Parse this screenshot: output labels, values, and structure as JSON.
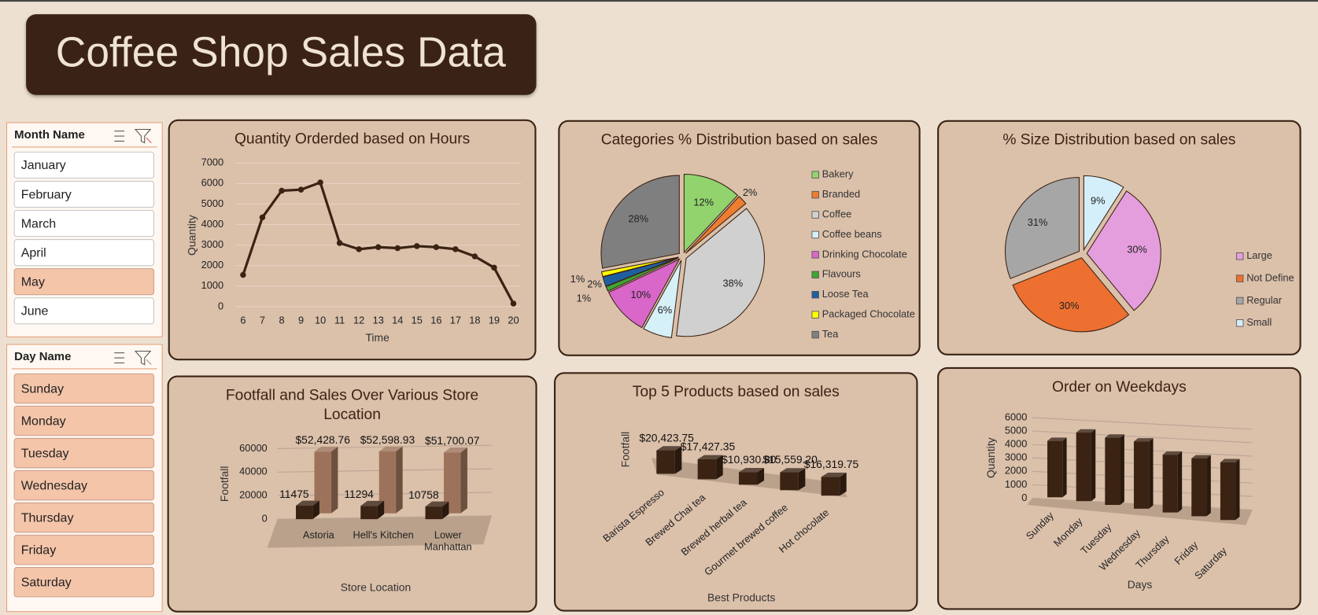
{
  "header": {
    "title": "Coffee Shop Sales Data"
  },
  "slicers": [
    {
      "title": "Month Name",
      "items": [
        "January",
        "February",
        "March",
        "April",
        "May",
        "June"
      ],
      "selected": [
        false,
        false,
        false,
        false,
        true,
        false
      ]
    },
    {
      "title": "Day Name",
      "items": [
        "Sunday",
        "Monday",
        "Tuesday",
        "Wednesday",
        "Thursday",
        "Friday",
        "Saturday"
      ],
      "selected": [
        true,
        true,
        true,
        true,
        true,
        true,
        true
      ]
    }
  ],
  "chart_data": [
    {
      "type": "line",
      "title": "Quantity  Orderded based on Hours",
      "x_label": "Time",
      "y_label": "Quantity",
      "x": [
        6,
        7,
        8,
        9,
        10,
        11,
        12,
        13,
        14,
        15,
        16,
        17,
        18,
        19,
        20
      ],
      "values": [
        1550,
        4350,
        5650,
        5700,
        6050,
        3100,
        2800,
        2900,
        2850,
        2950,
        2900,
        2800,
        2450,
        1900,
        150
      ],
      "color": "#3b2314",
      "xlim": [
        5.6,
        20.4
      ],
      "xticks": [
        6,
        7,
        8,
        9,
        10,
        11,
        12,
        13,
        14,
        15,
        16,
        17,
        18,
        19,
        20
      ],
      "ylim": [
        0,
        7000
      ],
      "yticks": [
        0,
        1000,
        2000,
        3000,
        4000,
        5000,
        6000,
        7000
      ],
      "grid": true
    },
    {
      "type": "pie",
      "title": "Categories % Distribution based on sales",
      "categories": [
        "Bakery",
        "Branded",
        "Coffee",
        "Coffee beans",
        "Drinking Chocolate",
        "Flavours",
        "Loose Tea",
        "Packaged Chocolate",
        "Tea"
      ],
      "values": [
        12,
        2,
        38,
        6,
        10,
        1,
        2,
        1,
        28
      ],
      "value_labels": [
        "12%",
        "2%",
        "38%",
        "6%",
        "10%",
        "1%",
        "2%",
        "1%",
        "28%"
      ],
      "colors": [
        "#92d36e",
        "#ed7d31",
        "#d0d0d0",
        "#d6f0f8",
        "#d966c9",
        "#3fa535",
        "#1f5fa0",
        "#ffff00",
        "#7f7f7f"
      ]
    },
    {
      "type": "pie",
      "title": "% Size Distribution based on sales",
      "categories": [
        "Large",
        "Not Define",
        "Regular",
        "Small"
      ],
      "values": [
        30,
        30,
        31,
        9
      ],
      "value_labels": [
        "30%",
        "30%",
        "31%",
        "9%"
      ],
      "colors": [
        "#e59edd",
        "#ed7031",
        "#a6a6a6",
        "#d5effa"
      ]
    },
    {
      "type": "bar",
      "title": "Footfall and Sales Over Various Store Location",
      "x_label": "Store Location",
      "y_label": "Footfall",
      "categories": [
        "Astoria",
        "Hell's Kitchen",
        "Lower Manhattan"
      ],
      "series": [
        {
          "color": "#3b2314",
          "values": [
            11475,
            11294,
            10758
          ]
        },
        {
          "color": "#9c735a",
          "values": [
            52428.76,
            52598.93,
            51700.07
          ],
          "value_labels": [
            "$52,428.76",
            "$52,598.93",
            "$51,700.07"
          ]
        }
      ],
      "ylim": [
        0,
        60000
      ],
      "yticks": [
        0,
        20000,
        40000,
        60000
      ],
      "grid": true
    },
    {
      "type": "bar",
      "title": "Top 5 Products based on sales",
      "x_label": "Best Products",
      "y_label": "Footfall",
      "categories": [
        "Barista Espresso",
        "Brewed Chai tea",
        "Brewed herbal tea",
        "Gourmet brewed coffee",
        "Hot chocolate"
      ],
      "values": [
        20423.75,
        17427.35,
        10930.8,
        15559.2,
        16319.75
      ],
      "value_labels": [
        "$20,423.75",
        "$17,427.35",
        "$10,930.80",
        "$15,559.20",
        "$16,319.75"
      ],
      "color": "#3b2314"
    },
    {
      "type": "bar",
      "title": "Order on Weekdays",
      "x_label": "Days",
      "y_label": "Quantity",
      "categories": [
        "Sunday",
        "Monday",
        "Tuesday",
        "Wednesday",
        "Thursday",
        "Friday",
        "Saturday"
      ],
      "values": [
        4200,
        5100,
        5000,
        5000,
        4300,
        4300,
        4300
      ],
      "color": "#3b2314",
      "ylim": [
        0,
        6000
      ],
      "yticks": [
        0,
        1000,
        2000,
        3000,
        4000,
        5000,
        6000
      ],
      "grid": true
    }
  ]
}
